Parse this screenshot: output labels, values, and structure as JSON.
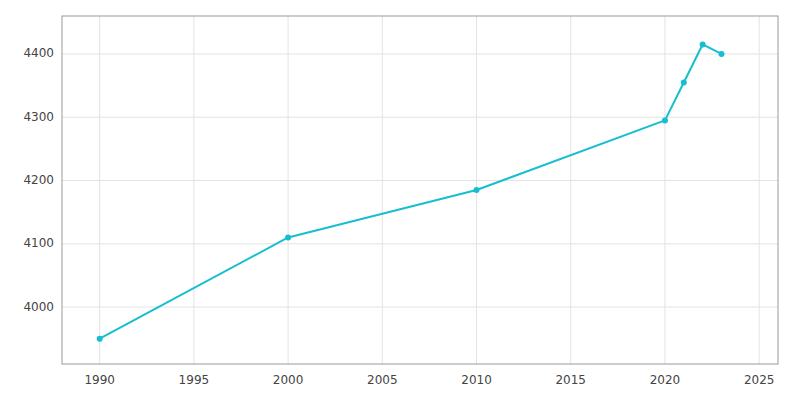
{
  "chart_data": {
    "type": "line",
    "x": [
      1990,
      2000,
      2010,
      2020,
      2021,
      2022,
      2023
    ],
    "values": [
      3950,
      4110,
      4185,
      4295,
      4355,
      4415,
      4400
    ],
    "color": "#17BECF",
    "marker": "circle",
    "xlim": [
      1988,
      2026
    ],
    "ylim": [
      3910,
      4460
    ],
    "xticks": [
      1990,
      1995,
      2000,
      2005,
      2010,
      2015,
      2020,
      2025
    ],
    "yticks": [
      4000,
      4100,
      4200,
      4300,
      4400
    ],
    "grid": true
  }
}
